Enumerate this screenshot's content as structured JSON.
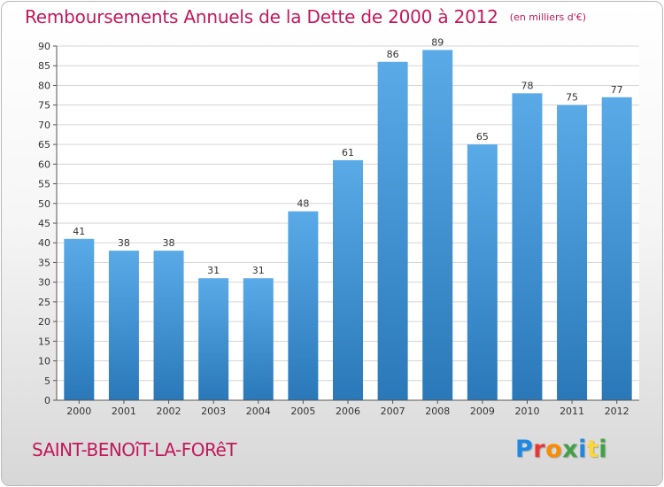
{
  "header": {
    "title": "Remboursements Annuels de la Dette de 2000 à 2012",
    "unit": "(en milliers d'€)"
  },
  "footer": {
    "place": "SAINT-BENOîT-LA-FORêT",
    "logo_letters": [
      {
        "ch": "P",
        "color": "#1e88e5"
      },
      {
        "ch": "r",
        "color": "#e53935"
      },
      {
        "ch": "o",
        "color": "#fb8c00"
      },
      {
        "ch": "x",
        "color": "#43a047"
      },
      {
        "ch": "i",
        "color": "#1e88e5"
      },
      {
        "ch": "t",
        "color": "#fdd835"
      },
      {
        "ch": "i",
        "color": "#43a047"
      }
    ]
  },
  "colors": {
    "title": "#c2185b",
    "bar_top": "#5aaae8",
    "bar_bottom": "#2a78b8",
    "grid": "#d6d6d6",
    "axis": "#555555",
    "label": "#333333"
  },
  "chart_data": {
    "type": "bar",
    "categories": [
      "2000",
      "2001",
      "2002",
      "2003",
      "2004",
      "2005",
      "2006",
      "2007",
      "2008",
      "2009",
      "2010",
      "2011",
      "2012"
    ],
    "values": [
      41,
      38,
      38,
      31,
      31,
      48,
      61,
      86,
      89,
      65,
      78,
      75,
      77
    ],
    "yticks": [
      0,
      5,
      10,
      15,
      20,
      25,
      30,
      35,
      40,
      45,
      50,
      55,
      60,
      65,
      70,
      75,
      80,
      85,
      90
    ],
    "ylim": [
      0,
      90
    ],
    "grid": true,
    "legend": "none"
  }
}
